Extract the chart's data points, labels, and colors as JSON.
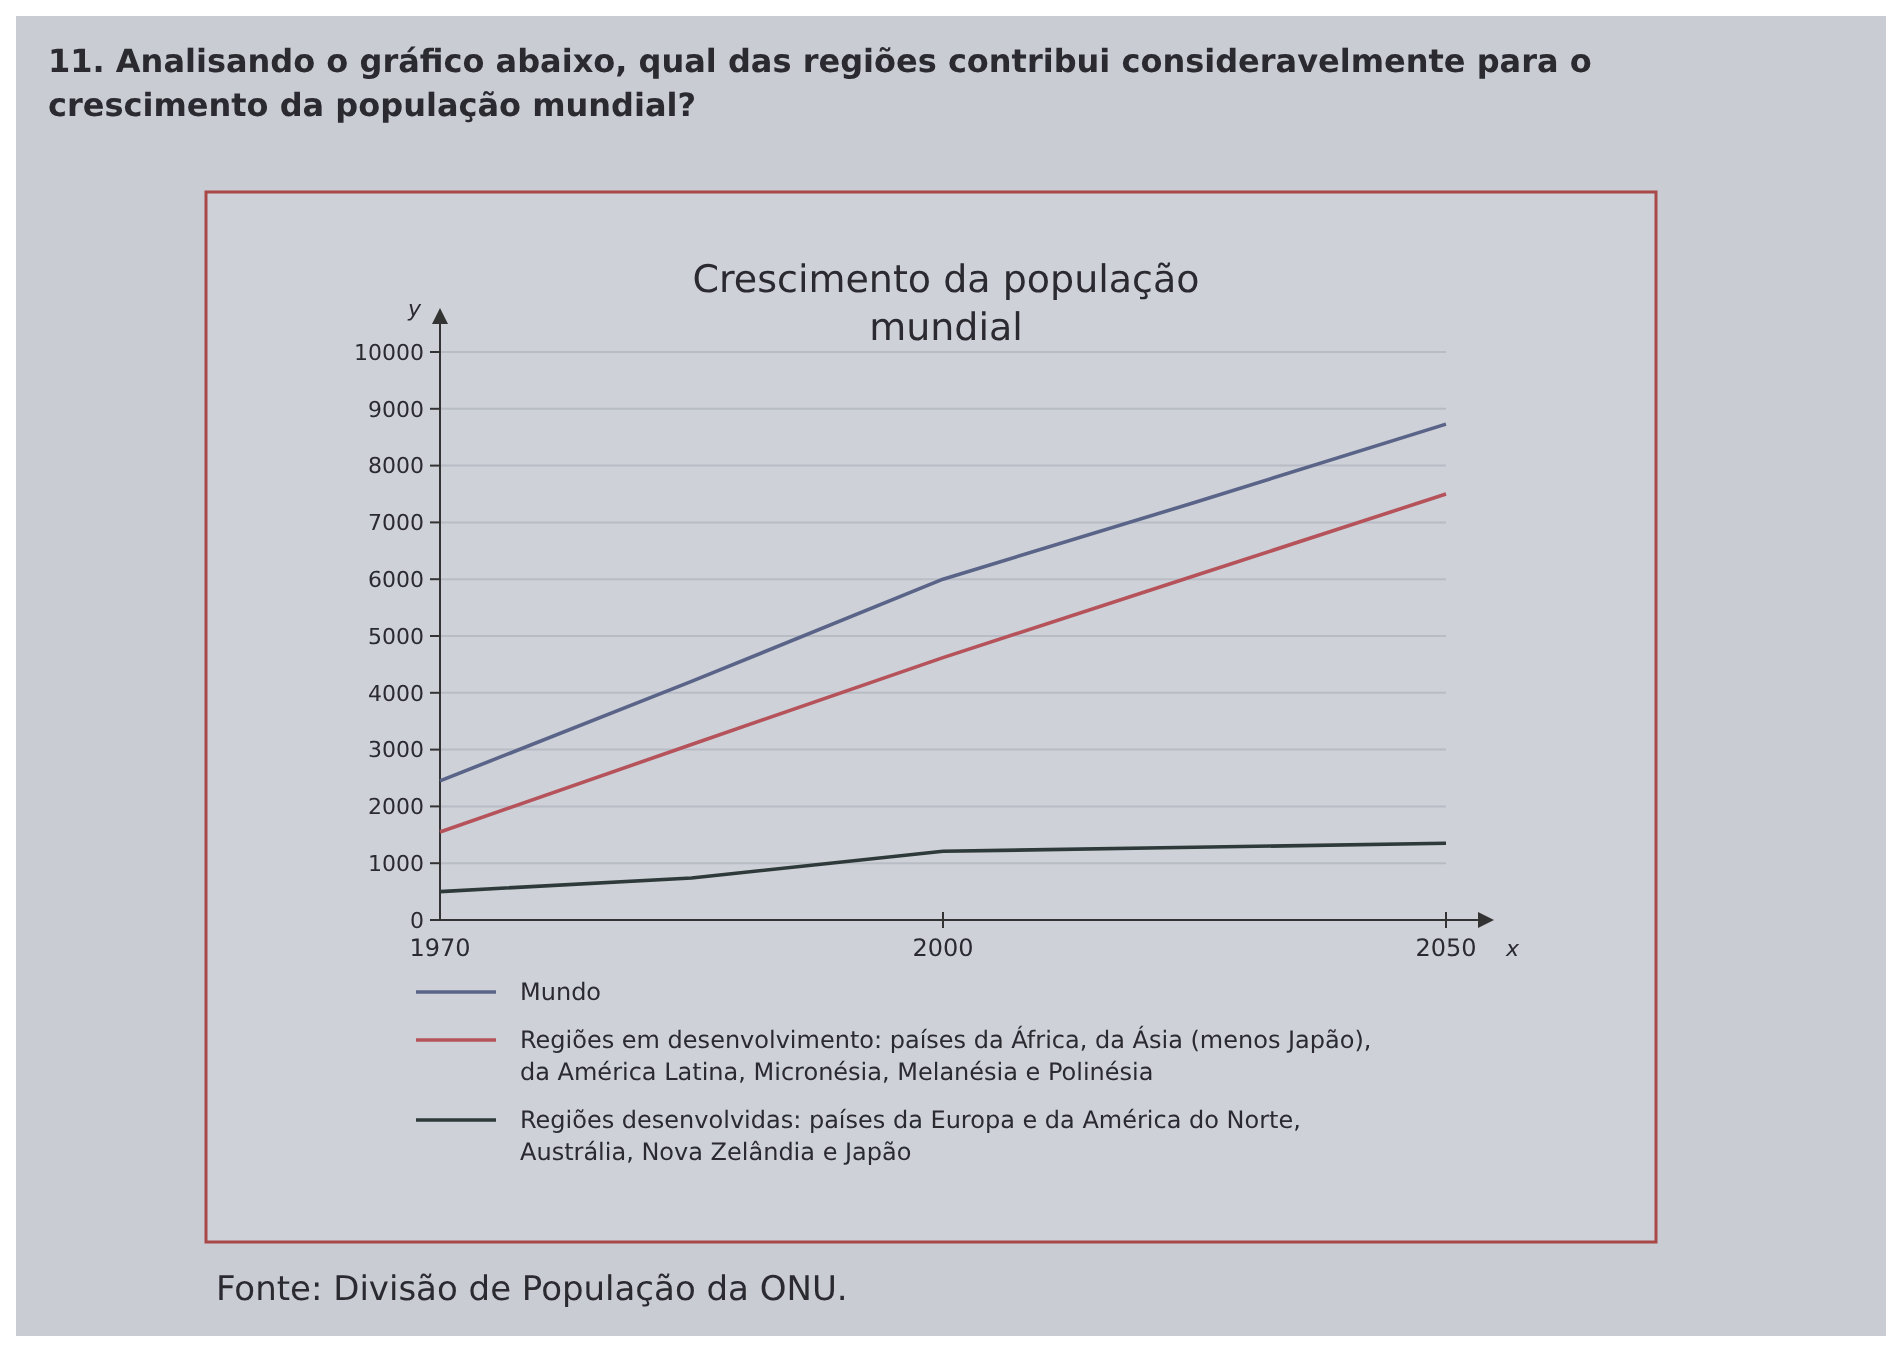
{
  "chart_data": {
    "type": "line",
    "title": "Crescimento da população mundial",
    "xlabel": "x",
    "ylabel": "y",
    "categories": [
      "1970",
      null,
      "2000",
      null,
      "2050"
    ],
    "series": [
      {
        "name": "Mundo",
        "color": "#5a6488",
        "values": [
          2450,
          4200,
          6000,
          7350,
          8730
        ]
      },
      {
        "name": "Regiões em desenvolvimento: países da África, da Ásia (menos Japão), da América Latina, Micronésia, Melanésia e Polinésia",
        "color": "#b5525a",
        "values": [
          1550,
          3090,
          4620,
          6060,
          7500
        ]
      },
      {
        "name": "Regiões desenvolvidas: países da Europa e da América do Norte, Austrália, Nova Zelândia e Japão",
        "color": "#2e3a3a",
        "values": [
          500,
          740,
          1210,
          1280,
          1350
        ]
      }
    ],
    "ylim": [
      0,
      10000
    ],
    "yticks": [
      0,
      1000,
      2000,
      3000,
      4000,
      5000,
      6000,
      7000,
      8000,
      9000,
      10000
    ],
    "grid": "y",
    "legend": "bottom",
    "marker": "none",
    "line_style": "solid",
    "annotations": [
      "11. Analisando o gráfico abaixo, qual das regiões contribui consideravelmente para o crescimento da população mundial?",
      "Fonte: Divisão de População da ONU."
    ]
  }
}
